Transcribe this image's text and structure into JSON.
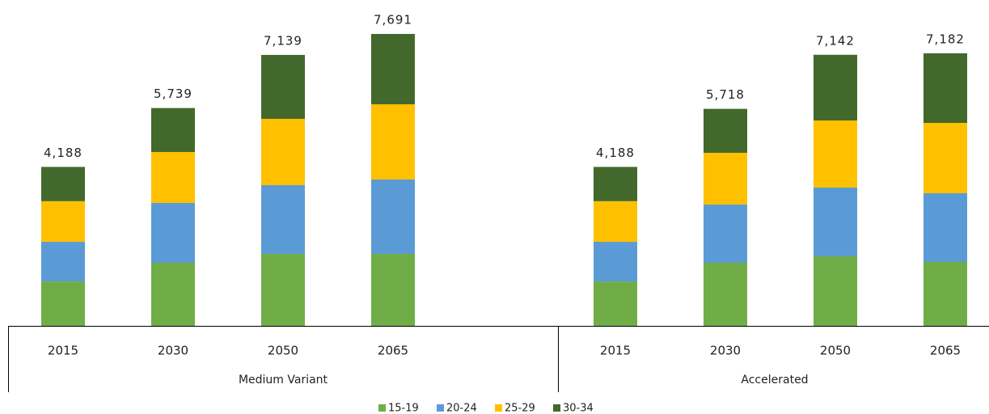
{
  "chart_data": {
    "type": "bar",
    "stacked": true,
    "series": [
      {
        "name": "15-19",
        "color": "#70ad47"
      },
      {
        "name": "20-24",
        "color": "#5b9bd5"
      },
      {
        "name": "25-29",
        "color": "#ffc000"
      },
      {
        "name": "30-34",
        "color": "#43682b"
      }
    ],
    "groups": [
      {
        "name": "Medium Variant",
        "categories": [
          "2015",
          "2030",
          "2050",
          "2065"
        ],
        "values": [
          [
            1170,
            1662,
            1897,
            1897
          ],
          [
            1045,
            1577,
            1811,
            1960
          ],
          [
            1070,
            1342,
            1747,
            1981
          ],
          [
            903,
            1158,
            1684,
            1853
          ]
        ],
        "totals": [
          4188,
          5739,
          7139,
          7691
        ],
        "total_labels": [
          "4,188",
          "5,739",
          "7,139",
          "7,691"
        ]
      },
      {
        "name": "Accelerated",
        "categories": [
          "2015",
          "2030",
          "2050",
          "2065"
        ],
        "values": [
          [
            1170,
            1662,
            1833,
            1683
          ],
          [
            1045,
            1534,
            1811,
            1811
          ],
          [
            1070,
            1364,
            1768,
            1853
          ],
          [
            903,
            1158,
            1730,
            1835
          ]
        ],
        "totals": [
          4188,
          5718,
          7142,
          7182
        ],
        "total_labels": [
          "4,188",
          "5,718",
          "7,142",
          "7,182"
        ]
      }
    ]
  }
}
